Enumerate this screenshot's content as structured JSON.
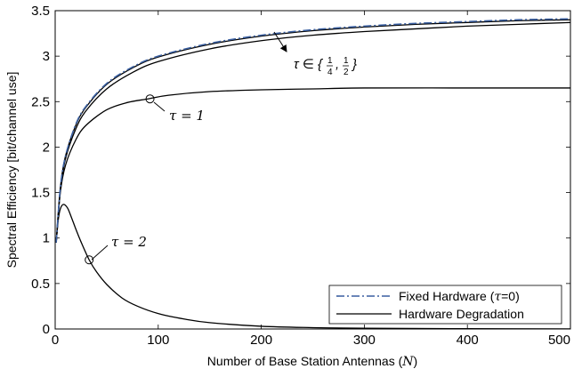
{
  "chart_data": {
    "type": "line",
    "title": "",
    "xlabel": "Number of Base Station Antennas (N)",
    "ylabel": "Spectral Efficiency [bit/channel use]",
    "xlim": [
      0,
      500
    ],
    "ylim": [
      0,
      3.5
    ],
    "xticks": [
      "0",
      "100",
      "200",
      "300",
      "400",
      "500"
    ],
    "yticks": [
      "0",
      "0.5",
      "1",
      "1.5",
      "2",
      "2.5",
      "3",
      "3.5"
    ],
    "grid": false,
    "legend_position": "bottom-right",
    "legend": [
      "Fixed Hardware (τ=0)",
      "Hardware Degradation"
    ],
    "series": [
      {
        "name": "Fixed Hardware (τ=0)",
        "style": "dash-dot",
        "color": "#3a5fa0",
        "x": [
          1,
          5,
          10,
          20,
          30,
          50,
          75,
          100,
          150,
          200,
          250,
          300,
          350,
          400,
          450,
          500
        ],
        "y": [
          0.95,
          1.55,
          1.9,
          2.25,
          2.45,
          2.7,
          2.88,
          3.0,
          3.14,
          3.23,
          3.29,
          3.33,
          3.36,
          3.38,
          3.4,
          3.41
        ]
      },
      {
        "name": "Hardware Degradation",
        "label": "τ ∈ {1/4, 1/2}",
        "style": "solid",
        "color": "#000000",
        "x": [
          1,
          5,
          10,
          20,
          30,
          50,
          75,
          100,
          150,
          200,
          250,
          300,
          350,
          400,
          450,
          500
        ],
        "y": [
          0.95,
          1.55,
          1.9,
          2.24,
          2.44,
          2.69,
          2.87,
          2.99,
          3.13,
          3.22,
          3.28,
          3.32,
          3.35,
          3.37,
          3.39,
          3.4
        ]
      },
      {
        "label": "τ ∈ {1/4, 1/2}",
        "style": "solid",
        "color": "#000000",
        "x": [
          1,
          5,
          10,
          20,
          30,
          50,
          75,
          100,
          150,
          200,
          250,
          300,
          350,
          400,
          450,
          500
        ],
        "y": [
          0.95,
          1.53,
          1.87,
          2.2,
          2.4,
          2.64,
          2.82,
          2.94,
          3.08,
          3.17,
          3.23,
          3.27,
          3.3,
          3.33,
          3.35,
          3.37
        ]
      },
      {
        "label": "τ = 1",
        "style": "solid",
        "color": "#000000",
        "x": [
          1,
          5,
          10,
          20,
          30,
          50,
          70,
          90,
          110,
          150,
          200,
          250,
          300,
          400,
          500
        ],
        "y": [
          0.95,
          1.5,
          1.8,
          2.08,
          2.24,
          2.41,
          2.49,
          2.53,
          2.57,
          2.61,
          2.63,
          2.64,
          2.65,
          2.65,
          2.65
        ]
      },
      {
        "label": "τ = 2",
        "style": "solid",
        "color": "#000000",
        "x": [
          1,
          3,
          5,
          8,
          12,
          16,
          20,
          25,
          33,
          40,
          50,
          65,
          80,
          100,
          125,
          150,
          200,
          250,
          300,
          400,
          500
        ],
        "y": [
          0.95,
          1.2,
          1.32,
          1.37,
          1.33,
          1.22,
          1.1,
          0.96,
          0.76,
          0.63,
          0.49,
          0.34,
          0.25,
          0.17,
          0.11,
          0.07,
          0.03,
          0.015,
          0.008,
          0.003,
          0.001
        ]
      }
    ],
    "markers": [
      {
        "x": 92,
        "y": 2.53
      },
      {
        "x": 33,
        "y": 0.76
      }
    ],
    "annotations": [
      {
        "text": "τ ∈ {1/4, 1/2}",
        "x": 228,
        "y": 3.1
      },
      {
        "text": "τ = 1",
        "x": 110,
        "y": 2.4
      },
      {
        "text": "τ = 2",
        "x": 57,
        "y": 1.1
      }
    ]
  }
}
